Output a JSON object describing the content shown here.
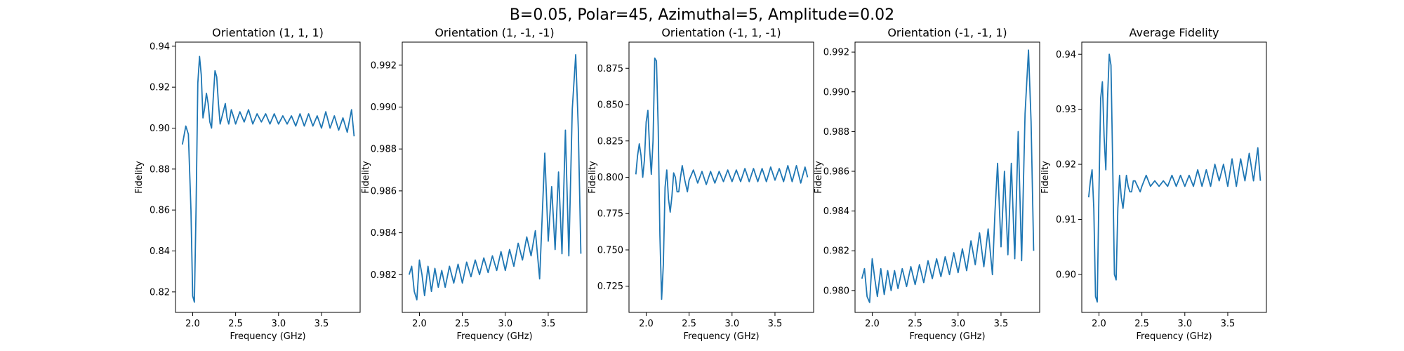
{
  "figure": {
    "suptitle": "B=0.05, Polar=45, Azimuthal=5, Amplitude=0.02"
  },
  "style": {
    "line_color": "#1f77b4",
    "axes_color": "#000000",
    "background": "#ffffff"
  },
  "chart_data": [
    {
      "type": "line",
      "title": "Orientation (1, 1, 1)",
      "xlabel": "Frequency (GHz)",
      "ylabel": "Fidelity",
      "xlim": [
        1.8,
        3.95
      ],
      "ylim": [
        0.81,
        0.942
      ],
      "xticks": [
        2.0,
        2.5,
        3.0,
        3.5
      ],
      "xtick_labels": [
        "2.0",
        "2.5",
        "3.0",
        "3.5"
      ],
      "yticks": [
        0.82,
        0.84,
        0.86,
        0.88,
        0.9,
        0.92,
        0.94
      ],
      "ytick_labels": [
        "0.82",
        "0.84",
        "0.86",
        "0.88",
        "0.90",
        "0.92",
        "0.94"
      ],
      "grid": false,
      "series": [
        {
          "x": [
            1.88,
            1.92,
            1.95,
            1.98,
            2.0,
            2.02,
            2.04,
            2.06,
            2.08,
            2.1,
            2.12,
            2.14,
            2.16,
            2.18,
            2.2,
            2.22,
            2.24,
            2.26,
            2.28,
            2.3,
            2.32,
            2.35,
            2.38,
            2.4,
            2.42,
            2.45,
            2.48,
            2.5,
            2.55,
            2.6,
            2.65,
            2.7,
            2.75,
            2.8,
            2.85,
            2.9,
            2.95,
            3.0,
            3.05,
            3.1,
            3.15,
            3.2,
            3.25,
            3.3,
            3.35,
            3.4,
            3.45,
            3.5,
            3.55,
            3.6,
            3.65,
            3.7,
            3.75,
            3.8,
            3.85,
            3.88
          ],
          "y": [
            0.892,
            0.901,
            0.897,
            0.86,
            0.818,
            0.815,
            0.862,
            0.922,
            0.935,
            0.926,
            0.905,
            0.91,
            0.917,
            0.912,
            0.903,
            0.9,
            0.915,
            0.928,
            0.925,
            0.912,
            0.902,
            0.907,
            0.912,
            0.905,
            0.902,
            0.909,
            0.905,
            0.902,
            0.908,
            0.903,
            0.909,
            0.902,
            0.907,
            0.903,
            0.907,
            0.902,
            0.907,
            0.902,
            0.906,
            0.902,
            0.906,
            0.901,
            0.907,
            0.901,
            0.907,
            0.901,
            0.906,
            0.9,
            0.908,
            0.9,
            0.906,
            0.899,
            0.905,
            0.898,
            0.909,
            0.896
          ]
        }
      ]
    },
    {
      "type": "line",
      "title": "Orientation (1, -1, -1)",
      "xlabel": "Frequency (GHz)",
      "ylabel": "Fidelity",
      "xlim": [
        1.8,
        3.95
      ],
      "ylim": [
        0.9802,
        0.9931
      ],
      "xticks": [
        2.0,
        2.5,
        3.0,
        3.5
      ],
      "xtick_labels": [
        "2.0",
        "2.5",
        "3.0",
        "3.5"
      ],
      "yticks": [
        0.982,
        0.984,
        0.986,
        0.988,
        0.99,
        0.992
      ],
      "ytick_labels": [
        "0.982",
        "0.984",
        "0.986",
        "0.988",
        "0.990",
        "0.992"
      ],
      "grid": false,
      "series": [
        {
          "x": [
            1.88,
            1.91,
            1.94,
            1.97,
            2.0,
            2.03,
            2.06,
            2.1,
            2.14,
            2.18,
            2.22,
            2.26,
            2.3,
            2.35,
            2.4,
            2.45,
            2.5,
            2.55,
            2.6,
            2.65,
            2.7,
            2.75,
            2.8,
            2.85,
            2.9,
            2.95,
            3.0,
            3.05,
            3.1,
            3.15,
            3.2,
            3.25,
            3.3,
            3.35,
            3.4,
            3.43,
            3.46,
            3.5,
            3.54,
            3.58,
            3.62,
            3.66,
            3.7,
            3.74,
            3.78,
            3.82,
            3.85,
            3.88
          ],
          "y": [
            0.982,
            0.9824,
            0.9812,
            0.9808,
            0.9827,
            0.982,
            0.981,
            0.9824,
            0.9812,
            0.9823,
            0.9814,
            0.9822,
            0.9814,
            0.9824,
            0.9816,
            0.9825,
            0.9816,
            0.9826,
            0.9819,
            0.9827,
            0.982,
            0.9828,
            0.9821,
            0.9829,
            0.9822,
            0.9831,
            0.9822,
            0.9832,
            0.9824,
            0.9835,
            0.9827,
            0.9838,
            0.9829,
            0.9841,
            0.9818,
            0.9848,
            0.9878,
            0.9836,
            0.9862,
            0.9832,
            0.9869,
            0.983,
            0.9889,
            0.9829,
            0.9899,
            0.9925,
            0.989,
            0.983
          ]
        }
      ]
    },
    {
      "type": "line",
      "title": "Orientation (-1, 1, -1)",
      "xlabel": "Frequency (GHz)",
      "ylabel": "Fidelity",
      "xlim": [
        1.8,
        3.95
      ],
      "ylim": [
        0.707,
        0.893
      ],
      "xticks": [
        2.0,
        2.5,
        3.0,
        3.5
      ],
      "xtick_labels": [
        "2.0",
        "2.5",
        "3.0",
        "3.5"
      ],
      "yticks": [
        0.725,
        0.75,
        0.775,
        0.8,
        0.825,
        0.85,
        0.875
      ],
      "ytick_labels": [
        "0.725",
        "0.750",
        "0.775",
        "0.800",
        "0.825",
        "0.850",
        "0.875"
      ],
      "grid": false,
      "series": [
        {
          "x": [
            1.88,
            1.9,
            1.92,
            1.94,
            1.96,
            1.98,
            2.0,
            2.02,
            2.04,
            2.06,
            2.08,
            2.1,
            2.12,
            2.14,
            2.16,
            2.18,
            2.2,
            2.22,
            2.24,
            2.26,
            2.28,
            2.3,
            2.32,
            2.34,
            2.36,
            2.38,
            2.4,
            2.42,
            2.45,
            2.48,
            2.5,
            2.55,
            2.6,
            2.65,
            2.7,
            2.75,
            2.8,
            2.85,
            2.9,
            2.95,
            3.0,
            3.05,
            3.1,
            3.15,
            3.2,
            3.25,
            3.3,
            3.35,
            3.4,
            3.45,
            3.5,
            3.55,
            3.6,
            3.65,
            3.7,
            3.75,
            3.8,
            3.85,
            3.88
          ],
          "y": [
            0.802,
            0.815,
            0.823,
            0.815,
            0.8,
            0.812,
            0.838,
            0.846,
            0.82,
            0.802,
            0.825,
            0.882,
            0.88,
            0.835,
            0.76,
            0.716,
            0.74,
            0.793,
            0.805,
            0.785,
            0.776,
            0.787,
            0.803,
            0.8,
            0.79,
            0.79,
            0.8,
            0.808,
            0.798,
            0.79,
            0.798,
            0.805,
            0.796,
            0.804,
            0.795,
            0.804,
            0.796,
            0.804,
            0.797,
            0.805,
            0.797,
            0.805,
            0.797,
            0.806,
            0.797,
            0.806,
            0.797,
            0.806,
            0.797,
            0.807,
            0.798,
            0.806,
            0.797,
            0.808,
            0.797,
            0.808,
            0.796,
            0.807,
            0.8
          ]
        }
      ]
    },
    {
      "type": "line",
      "title": "Orientation (-1, -1, 1)",
      "xlabel": "Frequency (GHz)",
      "ylabel": "Fidelity",
      "xlim": [
        1.8,
        3.95
      ],
      "ylim": [
        0.9789,
        0.9925
      ],
      "xticks": [
        2.0,
        2.5,
        3.0,
        3.5
      ],
      "xtick_labels": [
        "2.0",
        "2.5",
        "3.0",
        "3.5"
      ],
      "yticks": [
        0.98,
        0.982,
        0.984,
        0.986,
        0.988,
        0.99,
        0.992
      ],
      "ytick_labels": [
        "0.980",
        "0.982",
        "0.984",
        "0.986",
        "0.988",
        "0.990",
        "0.992"
      ],
      "grid": false,
      "series": [
        {
          "x": [
            1.88,
            1.91,
            1.94,
            1.97,
            2.0,
            2.03,
            2.06,
            2.1,
            2.14,
            2.18,
            2.22,
            2.26,
            2.3,
            2.35,
            2.4,
            2.45,
            2.5,
            2.55,
            2.6,
            2.65,
            2.7,
            2.75,
            2.8,
            2.85,
            2.9,
            2.95,
            3.0,
            3.05,
            3.1,
            3.15,
            3.2,
            3.25,
            3.3,
            3.35,
            3.4,
            3.43,
            3.46,
            3.5,
            3.54,
            3.58,
            3.62,
            3.66,
            3.7,
            3.74,
            3.78,
            3.82,
            3.85,
            3.88
          ],
          "y": [
            0.9806,
            0.9811,
            0.9797,
            0.9794,
            0.9816,
            0.9806,
            0.9797,
            0.9811,
            0.9798,
            0.981,
            0.98,
            0.981,
            0.9801,
            0.9811,
            0.9802,
            0.9812,
            0.9803,
            0.9813,
            0.9804,
            0.9815,
            0.9806,
            0.9816,
            0.9807,
            0.9817,
            0.9808,
            0.9819,
            0.9809,
            0.9821,
            0.981,
            0.9825,
            0.9813,
            0.9829,
            0.9812,
            0.9831,
            0.9808,
            0.984,
            0.9864,
            0.9822,
            0.986,
            0.9818,
            0.9864,
            0.9816,
            0.988,
            0.9815,
            0.9889,
            0.9921,
            0.9885,
            0.982
          ]
        }
      ]
    },
    {
      "type": "line",
      "title": "Average Fidelity",
      "xlabel": "Frequency (GHz)",
      "ylabel": "Fidelity",
      "xlim": [
        1.8,
        3.95
      ],
      "ylim": [
        0.8931,
        0.9422
      ],
      "xticks": [
        2.0,
        2.5,
        3.0,
        3.5
      ],
      "xtick_labels": [
        "2.0",
        "2.5",
        "3.0",
        "3.5"
      ],
      "yticks": [
        0.9,
        0.91,
        0.92,
        0.93,
        0.94
      ],
      "ytick_labels": [
        "0.90",
        "0.91",
        "0.92",
        "0.93",
        "0.94"
      ],
      "grid": false,
      "series": [
        {
          "x": [
            1.88,
            1.9,
            1.92,
            1.94,
            1.96,
            1.98,
            2.0,
            2.02,
            2.04,
            2.06,
            2.08,
            2.1,
            2.12,
            2.14,
            2.16,
            2.18,
            2.2,
            2.22,
            2.24,
            2.26,
            2.28,
            2.3,
            2.32,
            2.34,
            2.36,
            2.38,
            2.4,
            2.42,
            2.45,
            2.48,
            2.5,
            2.55,
            2.6,
            2.65,
            2.7,
            2.75,
            2.8,
            2.85,
            2.9,
            2.95,
            3.0,
            3.05,
            3.1,
            3.15,
            3.2,
            3.25,
            3.3,
            3.35,
            3.4,
            3.45,
            3.5,
            3.55,
            3.6,
            3.65,
            3.7,
            3.75,
            3.8,
            3.85,
            3.88
          ],
          "y": [
            0.914,
            0.917,
            0.919,
            0.912,
            0.896,
            0.895,
            0.915,
            0.932,
            0.935,
            0.925,
            0.919,
            0.932,
            0.94,
            0.938,
            0.92,
            0.9,
            0.899,
            0.912,
            0.918,
            0.914,
            0.912,
            0.915,
            0.918,
            0.916,
            0.915,
            0.915,
            0.917,
            0.917,
            0.916,
            0.915,
            0.916,
            0.918,
            0.916,
            0.917,
            0.916,
            0.917,
            0.916,
            0.918,
            0.916,
            0.918,
            0.916,
            0.918,
            0.916,
            0.919,
            0.916,
            0.919,
            0.916,
            0.92,
            0.917,
            0.92,
            0.916,
            0.921,
            0.916,
            0.921,
            0.917,
            0.922,
            0.917,
            0.923,
            0.917
          ]
        }
      ]
    }
  ]
}
